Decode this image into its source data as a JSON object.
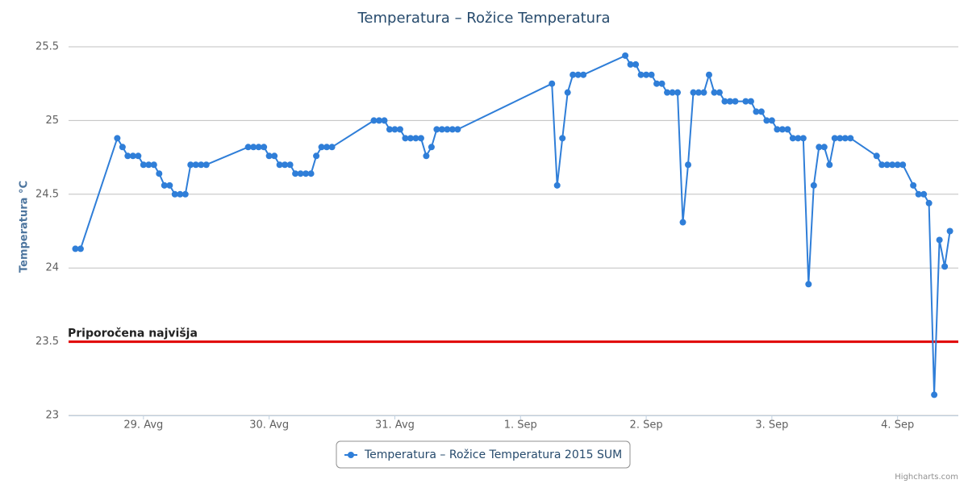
{
  "chart_data": {
    "type": "line",
    "title": "Temperatura – Rožice Temperatura",
    "y_label": "Temperatura °C",
    "credit": "Highcharts.com",
    "plot_line": {
      "value": 23.5,
      "label": "Priporočena najvišja",
      "color": "#e00000"
    },
    "xlim": [
      -14.3,
      155.6
    ],
    "xticks": [
      {
        "value": 0,
        "label": "29. Avg"
      },
      {
        "value": 24,
        "label": "30. Avg"
      },
      {
        "value": 48,
        "label": "31. Avg"
      },
      {
        "value": 72,
        "label": "1. Sep"
      },
      {
        "value": 96,
        "label": "2. Sep"
      },
      {
        "value": 120,
        "label": "3. Sep"
      },
      {
        "value": 144,
        "label": "4. Sep"
      }
    ],
    "ylim": [
      23,
      25.5
    ],
    "yticks": [
      23,
      23.5,
      24,
      24.5,
      25,
      25.5
    ],
    "grid": true,
    "legend": "bottom",
    "series": [
      {
        "name": "Temperatura – Rožice Temperatura 2015 SUM",
        "color": "#2f7ed8",
        "x": [
          -13,
          -12,
          -5,
          -4,
          -3,
          -2,
          -1,
          0,
          1,
          2,
          3,
          4,
          5,
          6,
          7,
          8,
          9,
          10,
          11,
          12,
          20,
          21,
          22,
          23,
          24,
          25,
          26,
          27,
          28,
          29,
          30,
          31,
          32,
          33,
          34,
          35,
          36,
          44,
          45,
          46,
          47,
          48,
          49,
          50,
          51,
          52,
          53,
          54,
          55,
          56,
          57,
          58,
          59,
          60,
          78,
          79,
          80,
          81,
          82,
          83,
          84,
          92,
          93,
          94,
          95,
          96,
          97,
          98,
          99,
          100,
          101,
          102,
          103,
          104,
          105,
          106,
          107,
          108,
          109,
          110,
          111,
          112,
          113,
          115,
          116,
          117,
          118,
          119,
          120,
          121,
          122,
          123,
          124,
          125,
          126,
          127,
          128,
          129,
          130,
          131,
          132,
          133,
          134,
          135,
          140,
          141,
          142,
          143,
          144,
          145,
          147,
          148,
          149,
          150,
          151,
          152,
          153,
          154
        ],
        "values": [
          24.13,
          24.13,
          24.88,
          24.82,
          24.76,
          24.76,
          24.76,
          24.7,
          24.7,
          24.7,
          24.64,
          24.56,
          24.56,
          24.5,
          24.5,
          24.5,
          24.7,
          24.7,
          24.7,
          24.7,
          24.82,
          24.82,
          24.82,
          24.82,
          24.76,
          24.76,
          24.7,
          24.7,
          24.7,
          24.64,
          24.64,
          24.64,
          24.64,
          24.76,
          24.82,
          24.82,
          24.82,
          25,
          25,
          25,
          24.94,
          24.94,
          24.94,
          24.88,
          24.88,
          24.88,
          24.88,
          24.76,
          24.82,
          24.94,
          24.94,
          24.94,
          24.94,
          24.94,
          25.25,
          24.56,
          24.88,
          25.19,
          25.31,
          25.31,
          25.31,
          25.44,
          25.38,
          25.38,
          25.31,
          25.31,
          25.31,
          25.25,
          25.25,
          25.19,
          25.19,
          25.19,
          24.31,
          24.7,
          25.19,
          25.19,
          25.19,
          25.31,
          25.19,
          25.19,
          25.13,
          25.13,
          25.13,
          25.13,
          25.13,
          25.06,
          25.06,
          25,
          25,
          24.94,
          24.94,
          24.94,
          24.88,
          24.88,
          24.88,
          23.89,
          24.56,
          24.82,
          24.82,
          24.7,
          24.88,
          24.88,
          24.88,
          24.88,
          24.76,
          24.7,
          24.7,
          24.7,
          24.7,
          24.7,
          24.56,
          24.5,
          24.5,
          24.44,
          23.14,
          24.19,
          24.01,
          24.25
        ]
      }
    ]
  }
}
